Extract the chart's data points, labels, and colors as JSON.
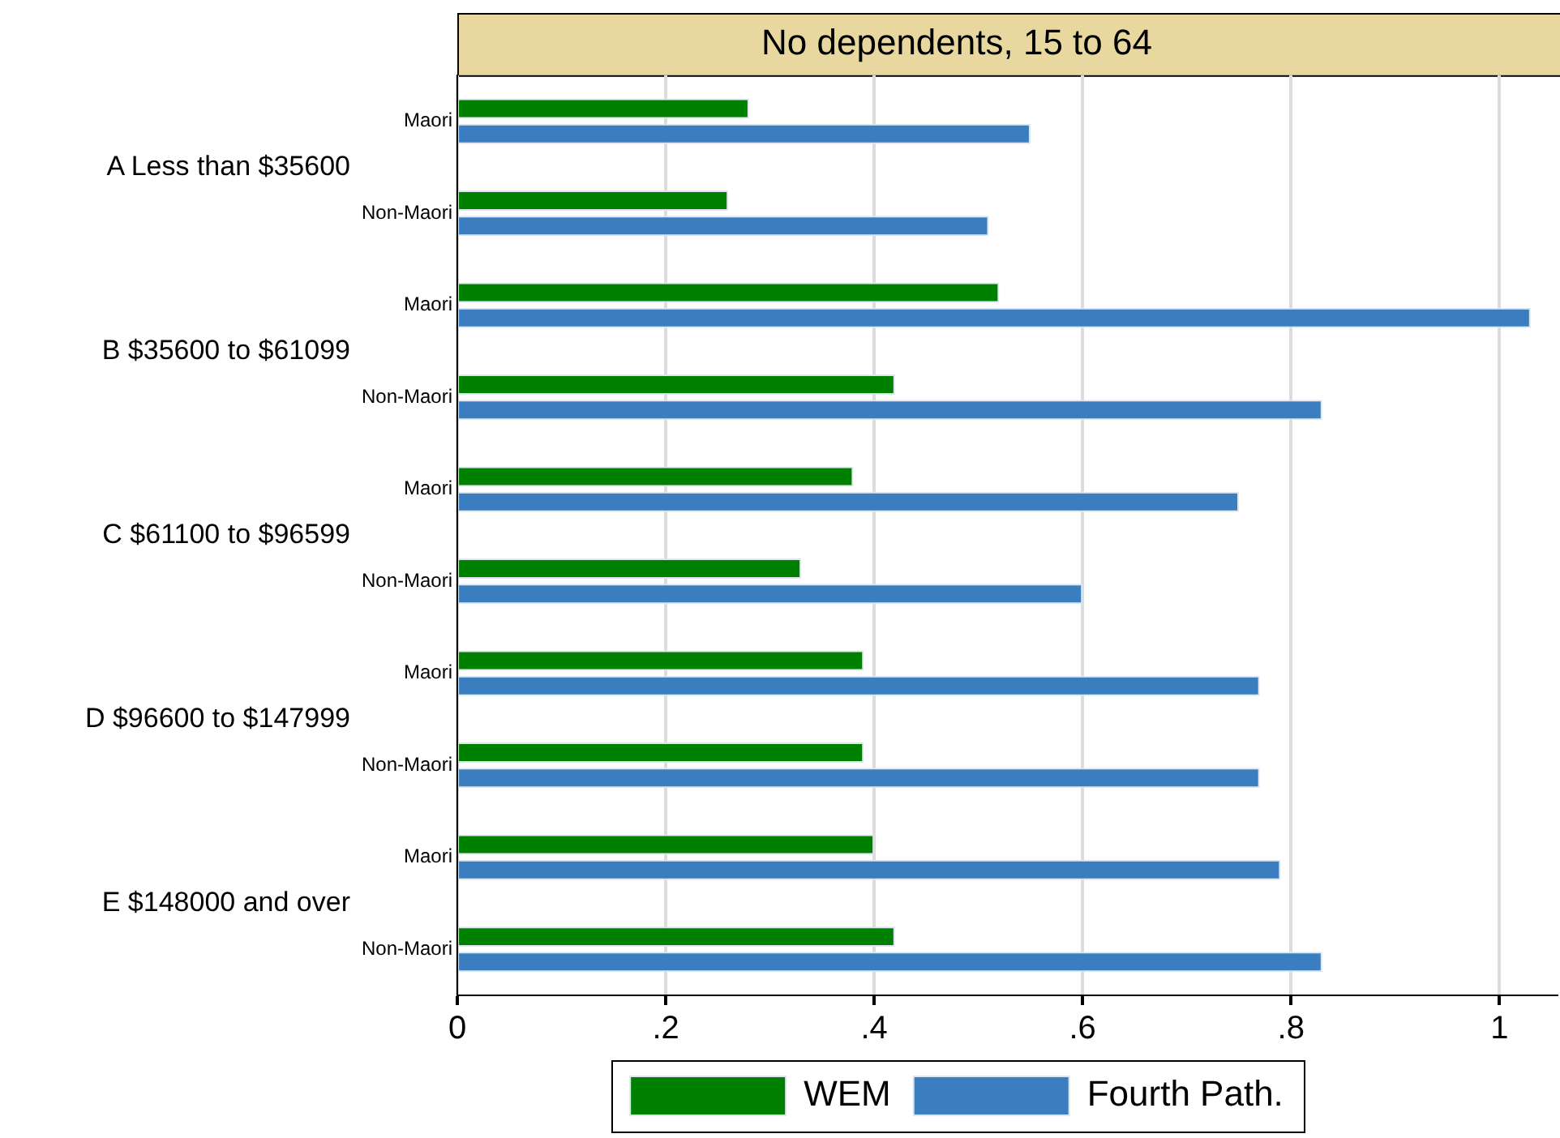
{
  "chart_data": {
    "type": "bar",
    "orientation": "horizontal",
    "title": "No dependents, 15 to 64",
    "categories": [
      "Maori",
      "Non-Maori",
      "Maori",
      "Non-Maori",
      "Maori",
      "Non-Maori",
      "Maori",
      "Non-Maori",
      "Maori",
      "Non-Maori"
    ],
    "annotations": [
      "A Less than $35600",
      "B $35600 to $61099",
      "C $61100 to $96599",
      "D $96600 to $147999",
      "E $148000 and over"
    ],
    "series": [
      {
        "name": "WEM",
        "color": "#008000",
        "values": [
          0.28,
          0.26,
          0.52,
          0.42,
          0.38,
          0.33,
          0.39,
          0.39,
          0.4,
          0.42
        ]
      },
      {
        "name": "Fourth Path.",
        "color": "#3a7ebf",
        "values": [
          0.55,
          0.51,
          1.03,
          0.83,
          0.75,
          0.6,
          0.77,
          0.77,
          0.79,
          0.83
        ]
      }
    ],
    "xlim": [
      0,
      1.055
    ],
    "xticks": [
      0,
      {
        "value": 0.2,
        "label": ".2"
      },
      {
        "value": 0.4,
        "label": ".4"
      },
      {
        "value": 0.6,
        "label": ".6"
      },
      {
        "value": 0.8,
        "label": ".8"
      },
      1
    ],
    "grid": "x",
    "legend": "bottom"
  }
}
